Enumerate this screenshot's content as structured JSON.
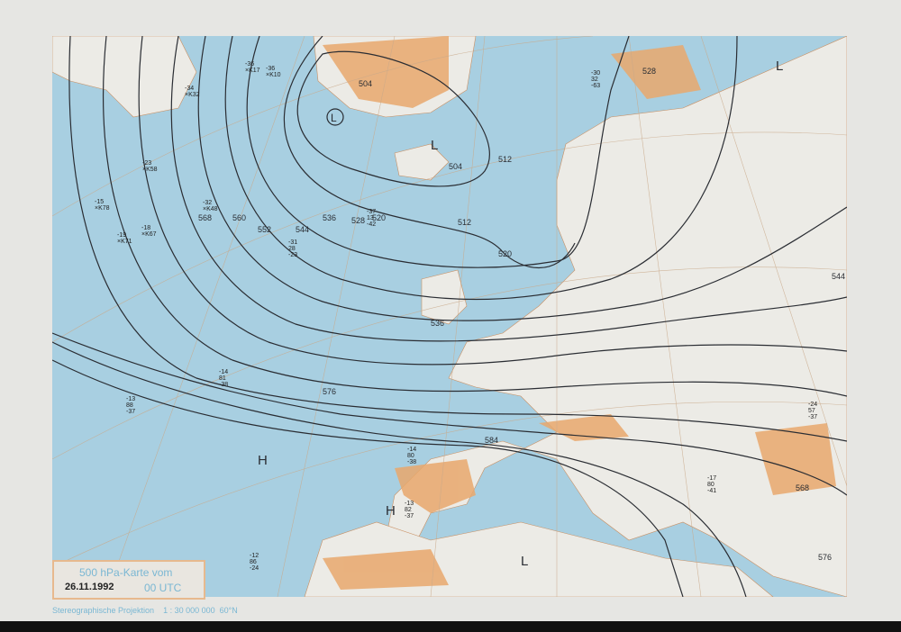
{
  "map": {
    "title": "500 hPa-Karte vom",
    "date": "26.11.1992",
    "time": "00 UTC",
    "projection": "Stereographische Projektion",
    "scale": "1 : 30 000 000",
    "reference_latitude": "60°N",
    "colors": {
      "sea": "#a8cfe1",
      "land": "#ecebe6",
      "highland": "#e9a86c",
      "contour": "#2a2d33",
      "graticule": "#c9a98a",
      "legend_text": "#7ab7d3"
    },
    "contour_labels": [
      "504",
      "512",
      "520",
      "528",
      "536",
      "544",
      "552",
      "560",
      "568",
      "576",
      "584",
      "504",
      "512",
      "520",
      "528",
      "536",
      "544",
      "568",
      "576"
    ],
    "pressure_centers": [
      "L",
      "L",
      "L",
      "L",
      "H",
      "H"
    ],
    "stations": [
      {
        "lines": [
          "-36",
          "×K17"
        ]
      },
      {
        "lines": [
          "-36",
          "×K10"
        ]
      },
      {
        "lines": [
          "-34",
          "×K32"
        ]
      },
      {
        "lines": [
          "-23",
          "×K58"
        ]
      },
      {
        "lines": [
          "-15",
          "×K78"
        ]
      },
      {
        "lines": [
          "-18",
          "×K67"
        ]
      },
      {
        "lines": [
          "-19",
          "×K71"
        ]
      },
      {
        "lines": [
          "-32",
          "×K48"
        ]
      },
      {
        "lines": [
          "-37",
          "13",
          "-42"
        ]
      },
      {
        "lines": [
          "-31",
          "28",
          "-23"
        ]
      },
      {
        "lines": [
          "-13",
          "88",
          "-37"
        ]
      },
      {
        "lines": [
          "-14",
          "81",
          "-38"
        ]
      },
      {
        "lines": [
          "-12",
          "86",
          "-24"
        ]
      },
      {
        "lines": [
          "-14",
          "80",
          "-38"
        ]
      },
      {
        "lines": [
          "-13",
          "82",
          "-37"
        ]
      },
      {
        "lines": [
          "-24",
          "57",
          "-37"
        ]
      },
      {
        "lines": [
          "-30",
          "32",
          "-63"
        ]
      },
      {
        "lines": [
          "-17",
          "80",
          "-41"
        ]
      }
    ]
  }
}
